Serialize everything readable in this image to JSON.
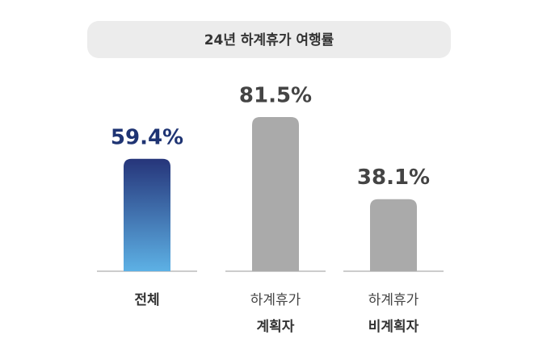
{
  "chart_data": {
    "type": "bar",
    "title": "24년 하계휴가 여행률",
    "categories": [
      [
        "전체"
      ],
      [
        "하계휴가",
        "계획자"
      ],
      [
        "하계휴가",
        "비계획자"
      ]
    ],
    "values": [
      59.4,
      81.5,
      38.1
    ],
    "value_labels": [
      "59.4%",
      "81.5%",
      "38.1%"
    ],
    "colors": [
      "#28387a",
      "#aaaaaa",
      "#aaaaaa"
    ]
  }
}
